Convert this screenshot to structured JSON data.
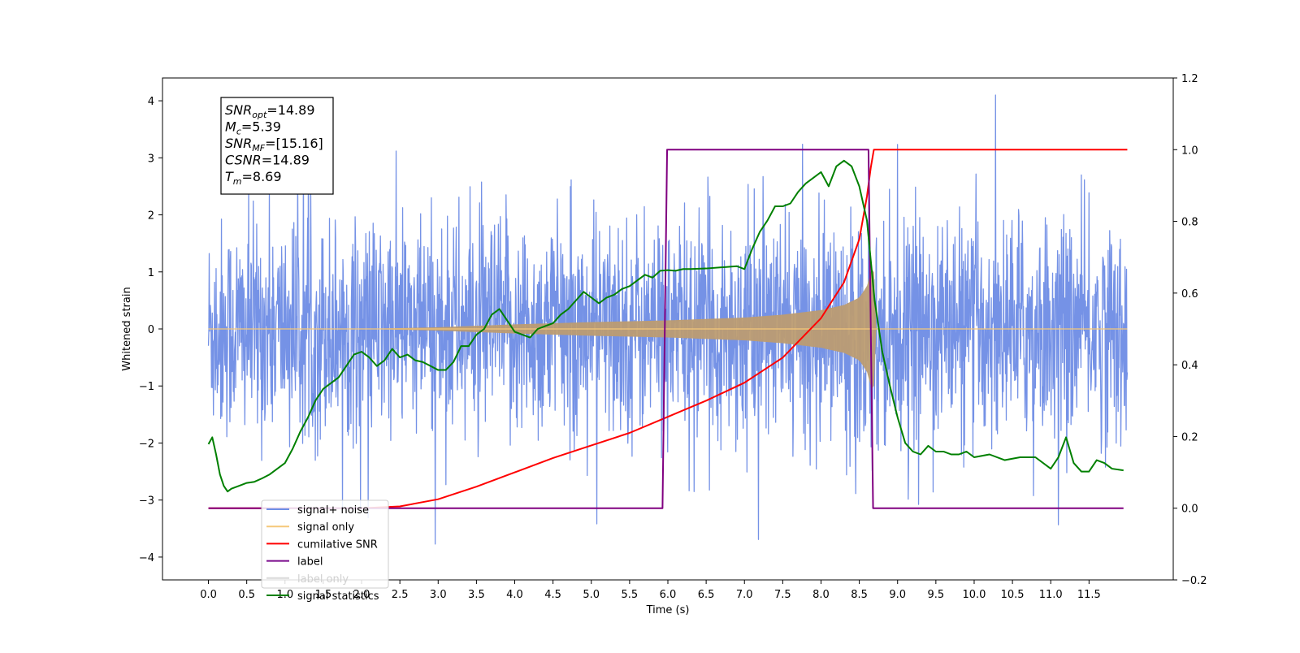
{
  "chart_data": {
    "type": "line",
    "title": "",
    "xlabel": "Time (s)",
    "ylabel": "Whitened strain",
    "ylabel_right": "",
    "xlim": [
      -0.6,
      12.6
    ],
    "ylim": [
      -4.4,
      4.4
    ],
    "ylim_right": [
      -0.2,
      1.2
    ],
    "x_ticks": [
      "0.0",
      "0.5",
      "1.0",
      "1.5",
      "2.0",
      "2.5",
      "3.0",
      "3.5",
      "4.0",
      "4.5",
      "5.0",
      "5.5",
      "6.0",
      "6.5",
      "7.0",
      "7.5",
      "8.0",
      "8.5",
      "9.0",
      "9.5",
      "10.0",
      "10.5",
      "11.0",
      "11.5"
    ],
    "y_ticks": [
      "4",
      "3",
      "2",
      "1",
      "0",
      "−1",
      "−2",
      "−3",
      "−4"
    ],
    "y_ticks_right": [
      "1.2",
      "1.0",
      "0.8",
      "0.6",
      "0.4",
      "0.2",
      "0.0",
      "−0.2"
    ],
    "annotation": {
      "lines": [
        {
          "sym": "SNR",
          "sub": "opt",
          "val": "=14.89"
        },
        {
          "sym": "M",
          "sub": "c",
          "val": "=5.39"
        },
        {
          "sym": "SNR",
          "sub": "MF",
          "val": "=[15.16]"
        },
        {
          "sym": "CSNR",
          "sub": "",
          "val": "=14.89"
        },
        {
          "sym": "T",
          "sub": "m",
          "val": "=8.69"
        }
      ]
    },
    "legend": {
      "placement": "lower-left",
      "entries": [
        {
          "label": "signal+ noise",
          "color": "#6f8ee6"
        },
        {
          "label": "signal only",
          "color": "#f5c87a"
        },
        {
          "label": "cumilative SNR",
          "color": "#ff0000"
        },
        {
          "label": "label",
          "color": "#7a0a8c"
        },
        {
          "label": "label only",
          "color": "#d8d8d8"
        },
        {
          "label": "signal statistics",
          "color": "#008000"
        }
      ]
    },
    "series": [
      {
        "name": "signal+ noise",
        "axis": "left",
        "color": "#7592e6",
        "x_range": [
          0.0,
          12.0
        ],
        "band_typical": [
          -1.3,
          1.3
        ],
        "peak_max": 4.1,
        "peak_min": -3.8
      },
      {
        "name": "signal only",
        "axis": "left",
        "color": "#bc9c72",
        "envelope": {
          "x": [
            0.0,
            1.0,
            2.0,
            3.0,
            4.0,
            5.0,
            6.0,
            7.0,
            7.5,
            8.0,
            8.3,
            8.5,
            8.6,
            8.65,
            8.69,
            8.7,
            12.0
          ],
          "amp": [
            0.0,
            0.0,
            0.0,
            0.03,
            0.08,
            0.12,
            0.15,
            0.2,
            0.25,
            0.33,
            0.42,
            0.55,
            0.75,
            1.0,
            1.2,
            0.0,
            0.0
          ]
        }
      },
      {
        "name": "cumilative SNR",
        "axis": "right",
        "color": "#ff0000",
        "x": [
          0.0,
          2.0,
          2.5,
          3.0,
          3.5,
          4.0,
          4.5,
          5.0,
          5.5,
          6.0,
          6.5,
          7.0,
          7.5,
          8.0,
          8.3,
          8.5,
          8.6,
          8.65,
          8.69,
          12.0
        ],
        "y": [
          0.0,
          0.0,
          0.005,
          0.025,
          0.06,
          0.1,
          0.14,
          0.175,
          0.21,
          0.255,
          0.3,
          0.35,
          0.42,
          0.53,
          0.63,
          0.75,
          0.87,
          0.95,
          1.0,
          1.0
        ]
      },
      {
        "name": "label",
        "axis": "right",
        "color": "#800080",
        "x": [
          0.0,
          5.93,
          5.99,
          8.62,
          8.68,
          11.95
        ],
        "y": [
          0.0,
          0.0,
          1.0,
          1.0,
          0.0,
          0.0
        ]
      },
      {
        "name": "signal statistics",
        "axis": "left",
        "color": "#008000",
        "x": [
          0.0,
          0.05,
          0.1,
          0.15,
          0.2,
          0.25,
          0.3,
          0.4,
          0.5,
          0.6,
          0.7,
          0.8,
          0.9,
          1.0,
          1.1,
          1.2,
          1.3,
          1.4,
          1.5,
          1.6,
          1.7,
          1.8,
          1.9,
          2.0,
          2.1,
          2.2,
          2.3,
          2.4,
          2.5,
          2.6,
          2.7,
          2.8,
          2.9,
          3.0,
          3.1,
          3.2,
          3.3,
          3.4,
          3.5,
          3.6,
          3.7,
          3.8,
          3.9,
          4.0,
          4.1,
          4.2,
          4.3,
          4.4,
          4.5,
          4.6,
          4.7,
          4.8,
          4.9,
          5.0,
          5.1,
          5.2,
          5.3,
          5.4,
          5.5,
          5.6,
          5.7,
          5.8,
          5.9,
          6.0,
          6.1,
          6.2,
          6.3,
          6.5,
          6.7,
          6.9,
          7.0,
          7.1,
          7.2,
          7.3,
          7.4,
          7.5,
          7.6,
          7.7,
          7.8,
          7.9,
          8.0,
          8.1,
          8.2,
          8.3,
          8.4,
          8.5,
          8.6,
          8.7,
          8.8,
          8.9,
          9.0,
          9.1,
          9.2,
          9.3,
          9.4,
          9.5,
          9.6,
          9.7,
          9.8,
          9.9,
          10.0,
          10.2,
          10.4,
          10.6,
          10.8,
          11.0,
          11.1,
          11.2,
          11.3,
          11.4,
          11.5,
          11.6,
          11.7,
          11.8,
          11.95
        ],
        "y": [
          -2.02,
          -1.9,
          -2.2,
          -2.55,
          -2.75,
          -2.85,
          -2.8,
          -2.75,
          -2.7,
          -2.68,
          -2.62,
          -2.55,
          -2.45,
          -2.35,
          -2.1,
          -1.8,
          -1.55,
          -1.25,
          -1.05,
          -0.95,
          -0.85,
          -0.65,
          -0.45,
          -0.4,
          -0.5,
          -0.65,
          -0.55,
          -0.35,
          -0.5,
          -0.45,
          -0.55,
          -0.58,
          -0.65,
          -0.72,
          -0.72,
          -0.58,
          -0.3,
          -0.3,
          -0.1,
          0.0,
          0.25,
          0.35,
          0.15,
          -0.05,
          -0.1,
          -0.15,
          0.0,
          0.05,
          0.1,
          0.25,
          0.35,
          0.5,
          0.65,
          0.55,
          0.45,
          0.55,
          0.6,
          0.7,
          0.75,
          0.85,
          0.95,
          0.9,
          1.02,
          1.03,
          1.02,
          1.05,
          1.05,
          1.06,
          1.08,
          1.1,
          1.05,
          1.4,
          1.7,
          1.9,
          2.15,
          2.15,
          2.2,
          2.4,
          2.55,
          2.65,
          2.75,
          2.5,
          2.85,
          2.95,
          2.85,
          2.5,
          1.9,
          0.5,
          -0.4,
          -1.0,
          -1.55,
          -2.0,
          -2.15,
          -2.2,
          -2.05,
          -2.15,
          -2.15,
          -2.2,
          -2.2,
          -2.15,
          -2.25,
          -2.2,
          -2.3,
          -2.25,
          -2.25,
          -2.45,
          -2.25,
          -1.9,
          -2.35,
          -2.5,
          -2.5,
          -2.3,
          -2.35,
          -2.45,
          -2.48
        ]
      }
    ]
  }
}
